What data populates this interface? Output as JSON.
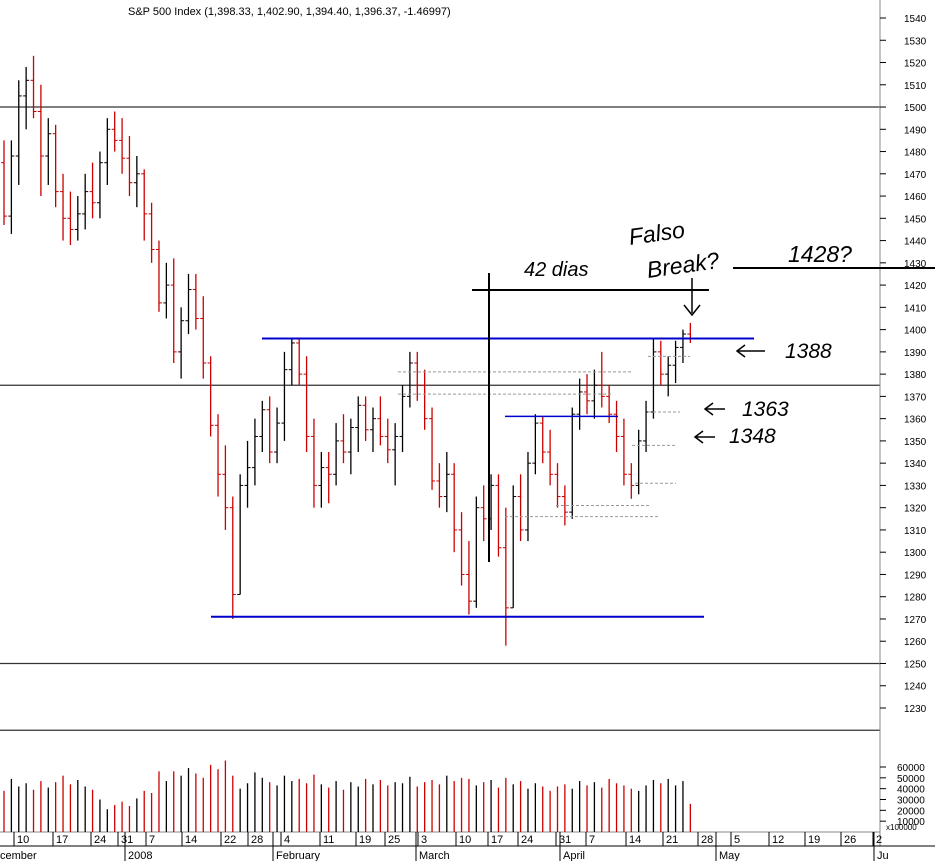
{
  "chart_data": {
    "type": "ohlc",
    "title": "S&P 500 Index (1,398.33, 1,402.90, 1,394.40, 1,396.37, -1.46997)",
    "price_axis": {
      "ticks": [
        1230,
        1240,
        1250,
        1260,
        1270,
        1280,
        1290,
        1300,
        1310,
        1320,
        1330,
        1340,
        1350,
        1360,
        1370,
        1380,
        1390,
        1400,
        1410,
        1420,
        1430,
        1440,
        1450,
        1460,
        1470,
        1480,
        1490,
        1500,
        1510,
        1520,
        1530,
        1540
      ],
      "tick_labels": [
        "1230",
        "1240",
        "1250",
        "1260",
        "1270",
        "1280",
        "1290",
        "1300",
        "1310",
        "1320",
        "1330",
        "1340",
        "1350",
        "1360",
        "1370",
        "1380",
        "1390",
        "1400",
        "1410",
        "1420",
        "1430",
        "1440",
        "1450",
        "1460",
        "1470",
        "1480",
        "1490",
        "1500",
        "1510",
        "1520",
        "1530",
        "1540"
      ],
      "range": [
        1222,
        1545
      ],
      "grid": false
    },
    "volume_axis": {
      "ticks": [
        10000,
        20000,
        30000,
        40000,
        50000,
        60000
      ],
      "tick_labels": [
        "10000",
        "20000",
        "30000",
        "40000",
        "50000",
        "60000"
      ],
      "unit_label": "x100000",
      "range": [
        0,
        72000
      ]
    },
    "x_axis": {
      "day_labels": [
        "10",
        "17",
        "24",
        "31",
        "7",
        "14",
        "22",
        "28",
        "4",
        "11",
        "19",
        "25",
        "3",
        "10",
        "17",
        "24",
        "31",
        "7",
        "14",
        "21",
        "28",
        "5",
        "12",
        "19",
        "26",
        "2"
      ],
      "month_labels": [
        "cember",
        "2008",
        "February",
        "March",
        "April",
        "May",
        "Ju"
      ]
    },
    "reference_lines": [
      1500,
      1375,
      1250,
      1220
    ],
    "channel_lines": [
      1396,
      1271
    ],
    "sub_line": 1361,
    "annotations": {
      "days": "42 dias",
      "false_break": "Falso",
      "false_break_2": "Break?",
      "target": "1428?",
      "level_1": "1388",
      "level_2": "1363",
      "level_3": "1348"
    },
    "colors": {
      "up_bar": "#000000",
      "down_bar": "#cc0000",
      "channel": "#0000cc",
      "reference": "#333333",
      "ink": "#000000"
    },
    "bars": [
      [
        1475,
        1485,
        1447,
        1451
      ],
      [
        1451,
        1485,
        1443,
        1478
      ],
      [
        1478,
        1512,
        1465,
        1505
      ],
      [
        1505,
        1518,
        1490,
        1512
      ],
      [
        1512,
        1523,
        1495,
        1498
      ],
      [
        1498,
        1510,
        1460,
        1478
      ],
      [
        1478,
        1495,
        1465,
        1488
      ],
      [
        1488,
        1492,
        1455,
        1462
      ],
      [
        1462,
        1470,
        1440,
        1450
      ],
      [
        1450,
        1462,
        1438,
        1445
      ],
      [
        1445,
        1460,
        1440,
        1452
      ],
      [
        1452,
        1470,
        1445,
        1462
      ],
      [
        1462,
        1475,
        1450,
        1457
      ],
      [
        1457,
        1480,
        1450,
        1475
      ],
      [
        1475,
        1495,
        1465,
        1490
      ],
      [
        1490,
        1498,
        1480,
        1485
      ],
      [
        1485,
        1495,
        1470,
        1477
      ],
      [
        1477,
        1487,
        1460,
        1466
      ],
      [
        1466,
        1478,
        1455,
        1470
      ],
      [
        1470,
        1472,
        1440,
        1452
      ],
      [
        1452,
        1457,
        1430,
        1436
      ],
      [
        1436,
        1440,
        1408,
        1412
      ],
      [
        1412,
        1430,
        1405,
        1420
      ],
      [
        1420,
        1432,
        1385,
        1390
      ],
      [
        1390,
        1410,
        1378,
        1404
      ],
      [
        1404,
        1425,
        1398,
        1418
      ],
      [
        1418,
        1425,
        1400,
        1405
      ],
      [
        1405,
        1415,
        1378,
        1385
      ],
      [
        1385,
        1388,
        1352,
        1357
      ],
      [
        1357,
        1362,
        1325,
        1335
      ],
      [
        1335,
        1348,
        1310,
        1320
      ],
      [
        1320,
        1325,
        1270,
        1281
      ],
      [
        1281,
        1335,
        1281,
        1330
      ],
      [
        1330,
        1350,
        1320,
        1338
      ],
      [
        1338,
        1360,
        1330,
        1352
      ],
      [
        1352,
        1368,
        1345,
        1364
      ],
      [
        1364,
        1370,
        1340,
        1345
      ],
      [
        1345,
        1365,
        1340,
        1358
      ],
      [
        1358,
        1390,
        1350,
        1382
      ],
      [
        1382,
        1396,
        1375,
        1394
      ],
      [
        1394,
        1396,
        1375,
        1380
      ],
      [
        1380,
        1388,
        1345,
        1352
      ],
      [
        1352,
        1360,
        1320,
        1330
      ],
      [
        1330,
        1345,
        1320,
        1338
      ],
      [
        1338,
        1345,
        1322,
        1335
      ],
      [
        1335,
        1358,
        1330,
        1350
      ],
      [
        1350,
        1362,
        1340,
        1345
      ],
      [
        1345,
        1360,
        1335,
        1356
      ],
      [
        1356,
        1370,
        1345,
        1366
      ],
      [
        1366,
        1370,
        1350,
        1355
      ],
      [
        1355,
        1365,
        1345,
        1360
      ],
      [
        1360,
        1370,
        1348,
        1352
      ],
      [
        1352,
        1360,
        1340,
        1346
      ],
      [
        1346,
        1358,
        1330,
        1352
      ],
      [
        1352,
        1375,
        1345,
        1370
      ],
      [
        1370,
        1390,
        1365,
        1385
      ],
      [
        1385,
        1390,
        1368,
        1375
      ],
      [
        1375,
        1382,
        1355,
        1360
      ],
      [
        1360,
        1365,
        1328,
        1332
      ],
      [
        1332,
        1340,
        1320,
        1325
      ],
      [
        1325,
        1345,
        1318,
        1335
      ],
      [
        1335,
        1340,
        1300,
        1310
      ],
      [
        1310,
        1318,
        1285,
        1290
      ],
      [
        1290,
        1305,
        1272,
        1278
      ],
      [
        1278,
        1325,
        1275,
        1320
      ],
      [
        1320,
        1330,
        1305,
        1315
      ],
      [
        1315,
        1335,
        1310,
        1330
      ],
      [
        1330,
        1335,
        1298,
        1302
      ],
      [
        1302,
        1320,
        1258,
        1275
      ],
      [
        1275,
        1330,
        1275,
        1325
      ],
      [
        1325,
        1335,
        1305,
        1310
      ],
      [
        1310,
        1345,
        1305,
        1340
      ],
      [
        1340,
        1362,
        1335,
        1358
      ],
      [
        1358,
        1361,
        1340,
        1345
      ],
      [
        1345,
        1355,
        1330,
        1335
      ],
      [
        1335,
        1340,
        1320,
        1325
      ],
      [
        1325,
        1330,
        1312,
        1318
      ],
      [
        1318,
        1365,
        1315,
        1362
      ],
      [
        1362,
        1378,
        1355,
        1372
      ],
      [
        1372,
        1380,
        1362,
        1368
      ],
      [
        1368,
        1382,
        1360,
        1375
      ],
      [
        1375,
        1390,
        1365,
        1370
      ],
      [
        1370,
        1375,
        1358,
        1362
      ],
      [
        1362,
        1368,
        1345,
        1352
      ],
      [
        1352,
        1360,
        1330,
        1335
      ],
      [
        1335,
        1340,
        1324,
        1330
      ],
      [
        1330,
        1355,
        1326,
        1350
      ],
      [
        1350,
        1368,
        1345,
        1363
      ],
      [
        1363,
        1396,
        1360,
        1390
      ],
      [
        1390,
        1395,
        1375,
        1380
      ],
      [
        1380,
        1388,
        1370,
        1384
      ],
      [
        1384,
        1395,
        1376,
        1392
      ],
      [
        1392,
        1400,
        1385,
        1398
      ],
      [
        1398,
        1403,
        1394,
        1396
      ]
    ],
    "volumes": [
      38000,
      49000,
      42000,
      45000,
      39000,
      47000,
      41000,
      46000,
      52000,
      44000,
      48000,
      42000,
      39000,
      30000,
      21000,
      25000,
      28000,
      24000,
      31000,
      38000,
      36000,
      56000,
      47000,
      56000,
      52000,
      59000,
      54000,
      50000,
      62000,
      58000,
      66000,
      52000,
      40000,
      45000,
      55000,
      50000,
      46000,
      43000,
      52000,
      47000,
      49000,
      45000,
      53000,
      44000,
      41000,
      47000,
      39000,
      46000,
      42000,
      49000,
      44000,
      48000,
      43000,
      46000,
      45000,
      51000,
      42000,
      46000,
      48000,
      44000,
      52000,
      47000,
      50000,
      49000,
      43000,
      46000,
      48000,
      41000,
      50000,
      44000,
      47000,
      40000,
      45000,
      42000,
      38000,
      42000,
      44000,
      40000,
      47000,
      43000,
      46000,
      41000,
      49000,
      45000,
      43000,
      40000,
      38000,
      43000,
      48000,
      45000,
      49000,
      43000,
      47000,
      26000
    ]
  }
}
